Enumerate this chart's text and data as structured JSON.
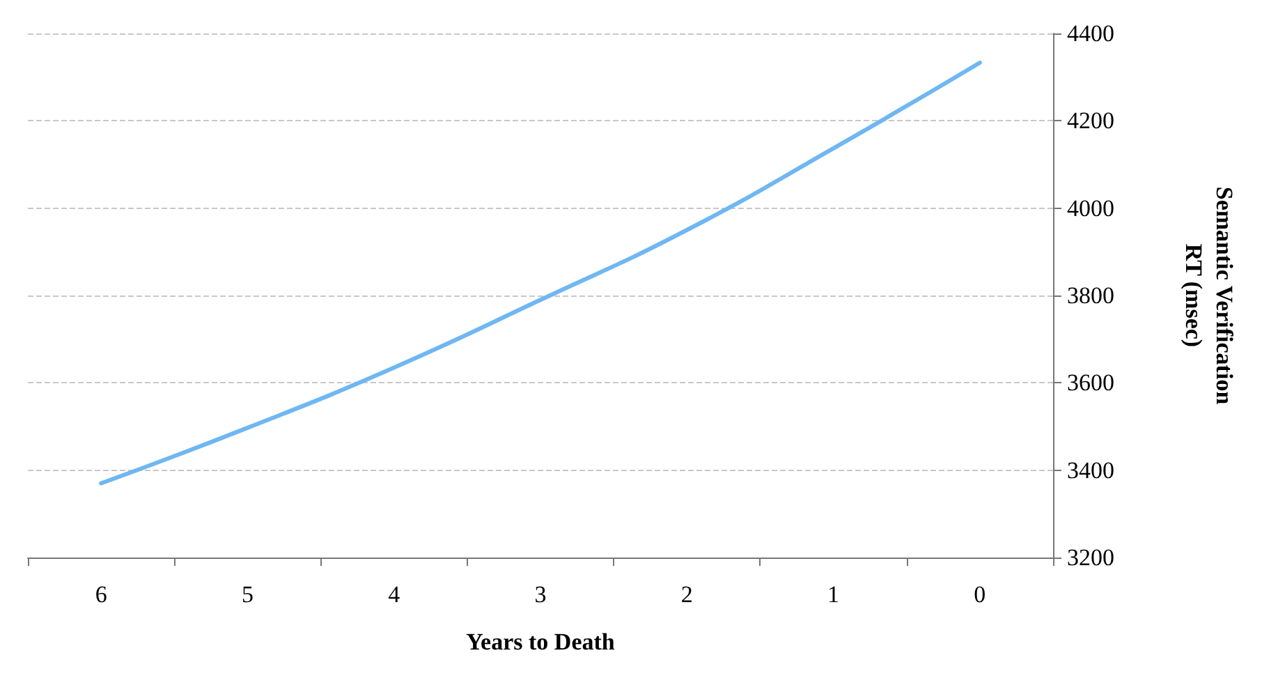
{
  "chart_data": {
    "type": "line",
    "xlabel": "Years to Death",
    "ylabel": "Semantic Verification\nRT (msec)",
    "categories": [
      "6",
      "5",
      "4",
      "3",
      "2",
      "1",
      "0"
    ],
    "series": [
      {
        "color": "#6fb7f2",
        "values": [
          3370,
          3497,
          3635,
          3790,
          3950,
          4137,
          4333
        ]
      }
    ],
    "ylim": [
      3200,
      4400
    ],
    "yticks": [
      3200,
      3400,
      3600,
      3800,
      4000,
      4200,
      4400
    ],
    "grid": "y",
    "marker": "none",
    "line_style": "solid"
  }
}
